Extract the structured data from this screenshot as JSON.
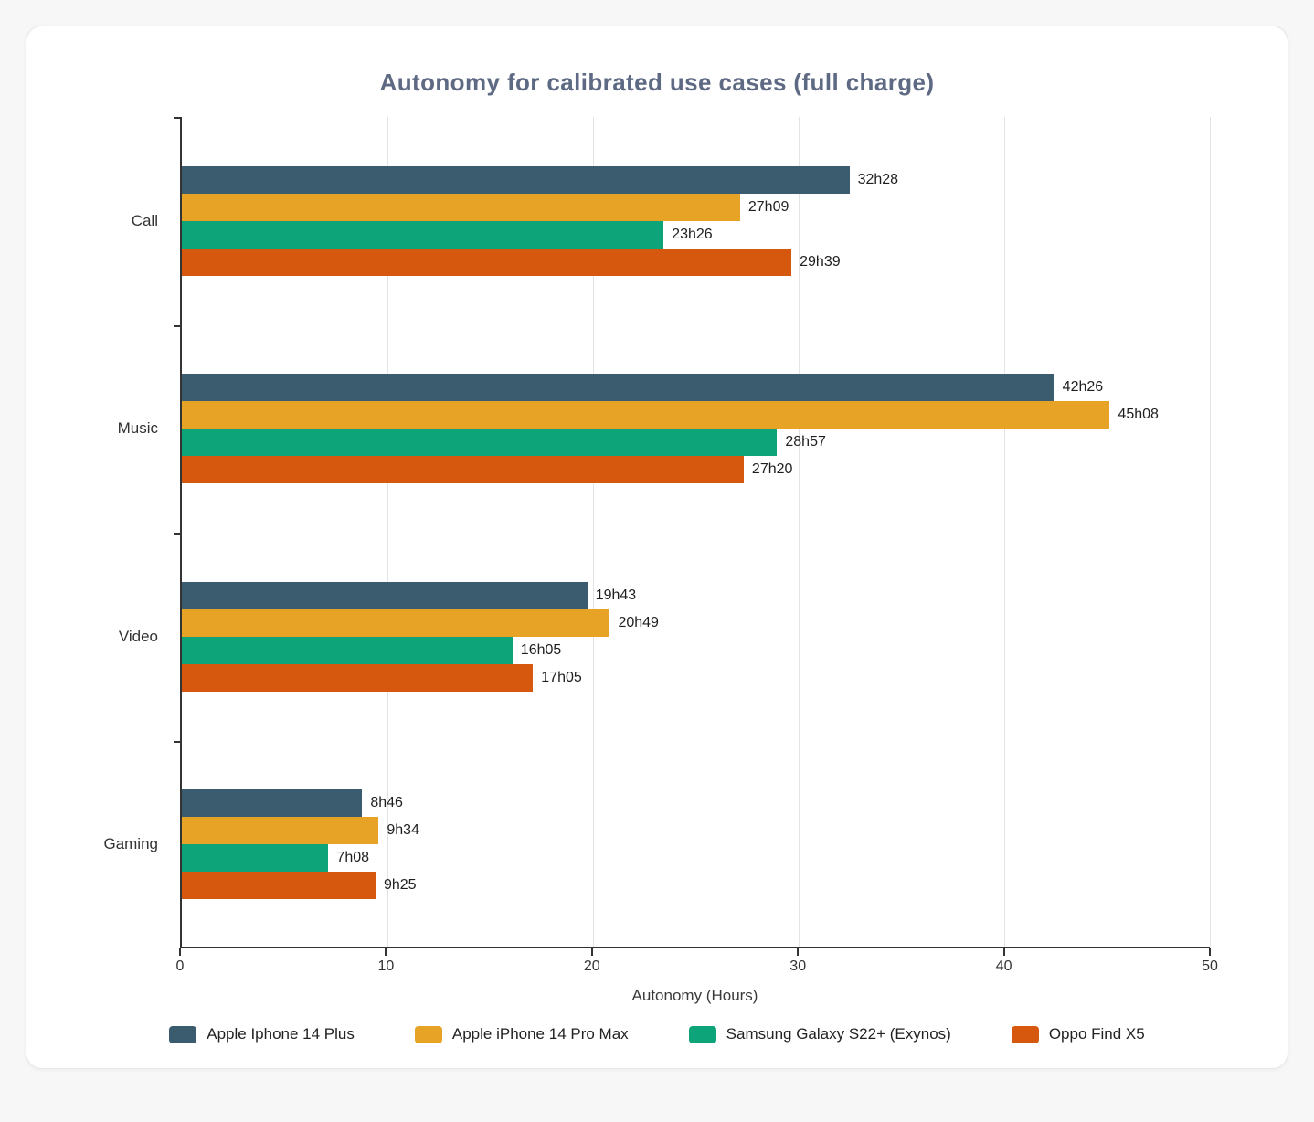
{
  "chart_data": {
    "type": "bar",
    "orientation": "horizontal",
    "title": "Autonomy for calibrated use cases (full charge)",
    "xlabel": "Autonomy (Hours)",
    "xlim": [
      0,
      50
    ],
    "xticks": [
      0,
      10,
      20,
      30,
      40,
      50
    ],
    "grid": true,
    "legend_position": "bottom",
    "categories": [
      "Call",
      "Music",
      "Video",
      "Gaming"
    ],
    "series": [
      {
        "name": "Apple Iphone 14 Plus",
        "color": "#3b5b6e",
        "values_hours": [
          32.47,
          42.43,
          19.72,
          8.77
        ],
        "labels": [
          "32h28",
          "42h26",
          "19h43",
          "8h46"
        ]
      },
      {
        "name": "Apple iPhone 14 Pro Max",
        "color": "#e6a325",
        "values_hours": [
          27.15,
          45.13,
          20.82,
          9.57
        ],
        "labels": [
          "27h09",
          "45h08",
          "20h49",
          "9h34"
        ]
      },
      {
        "name": "Samsung Galaxy S22+ (Exynos)",
        "color": "#0da47a",
        "values_hours": [
          23.43,
          28.95,
          16.08,
          7.13
        ],
        "labels": [
          "23h26",
          "28h57",
          "16h05",
          "7h08"
        ]
      },
      {
        "name": "Oppo Find X5",
        "color": "#d6570e",
        "values_hours": [
          29.65,
          27.33,
          17.08,
          9.42
        ],
        "labels": [
          "29h39",
          "27h20",
          "17h05",
          "9h25"
        ]
      }
    ]
  }
}
